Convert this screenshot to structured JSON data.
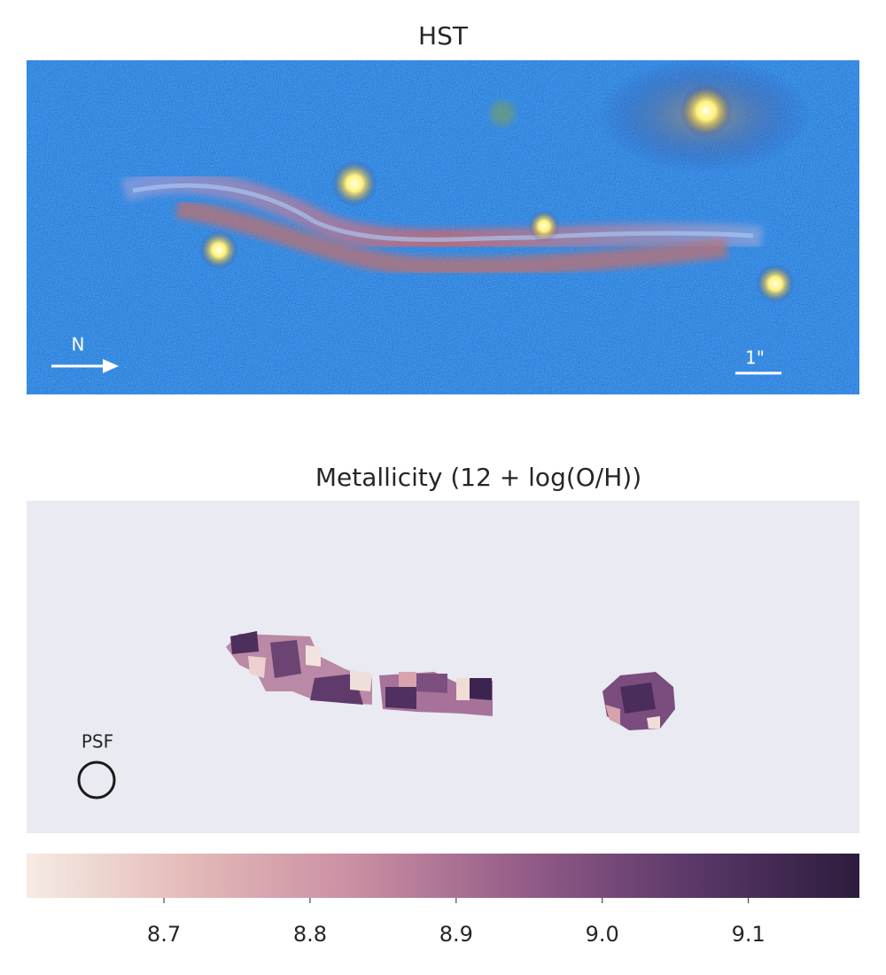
{
  "chart_data": [
    {
      "type": "image",
      "title": "HST",
      "compass_label": "N",
      "scale_label": "1\""
    },
    {
      "type": "colormap",
      "title": "Metallicity (12 + log(O/H))",
      "psf_label": "PSF",
      "clim": [
        8.606,
        9.176
      ],
      "cticks": [
        8.7,
        8.8,
        8.9,
        {
          "value": 9.0,
          "label": "9.0"
        },
        9.1
      ],
      "colormap": [
        "#f6ebe3",
        "#e3b9b8",
        "#c98da2",
        "#935c88",
        "#5a3868",
        "#2d1c3d"
      ],
      "background": "#eaeaf2"
    }
  ]
}
